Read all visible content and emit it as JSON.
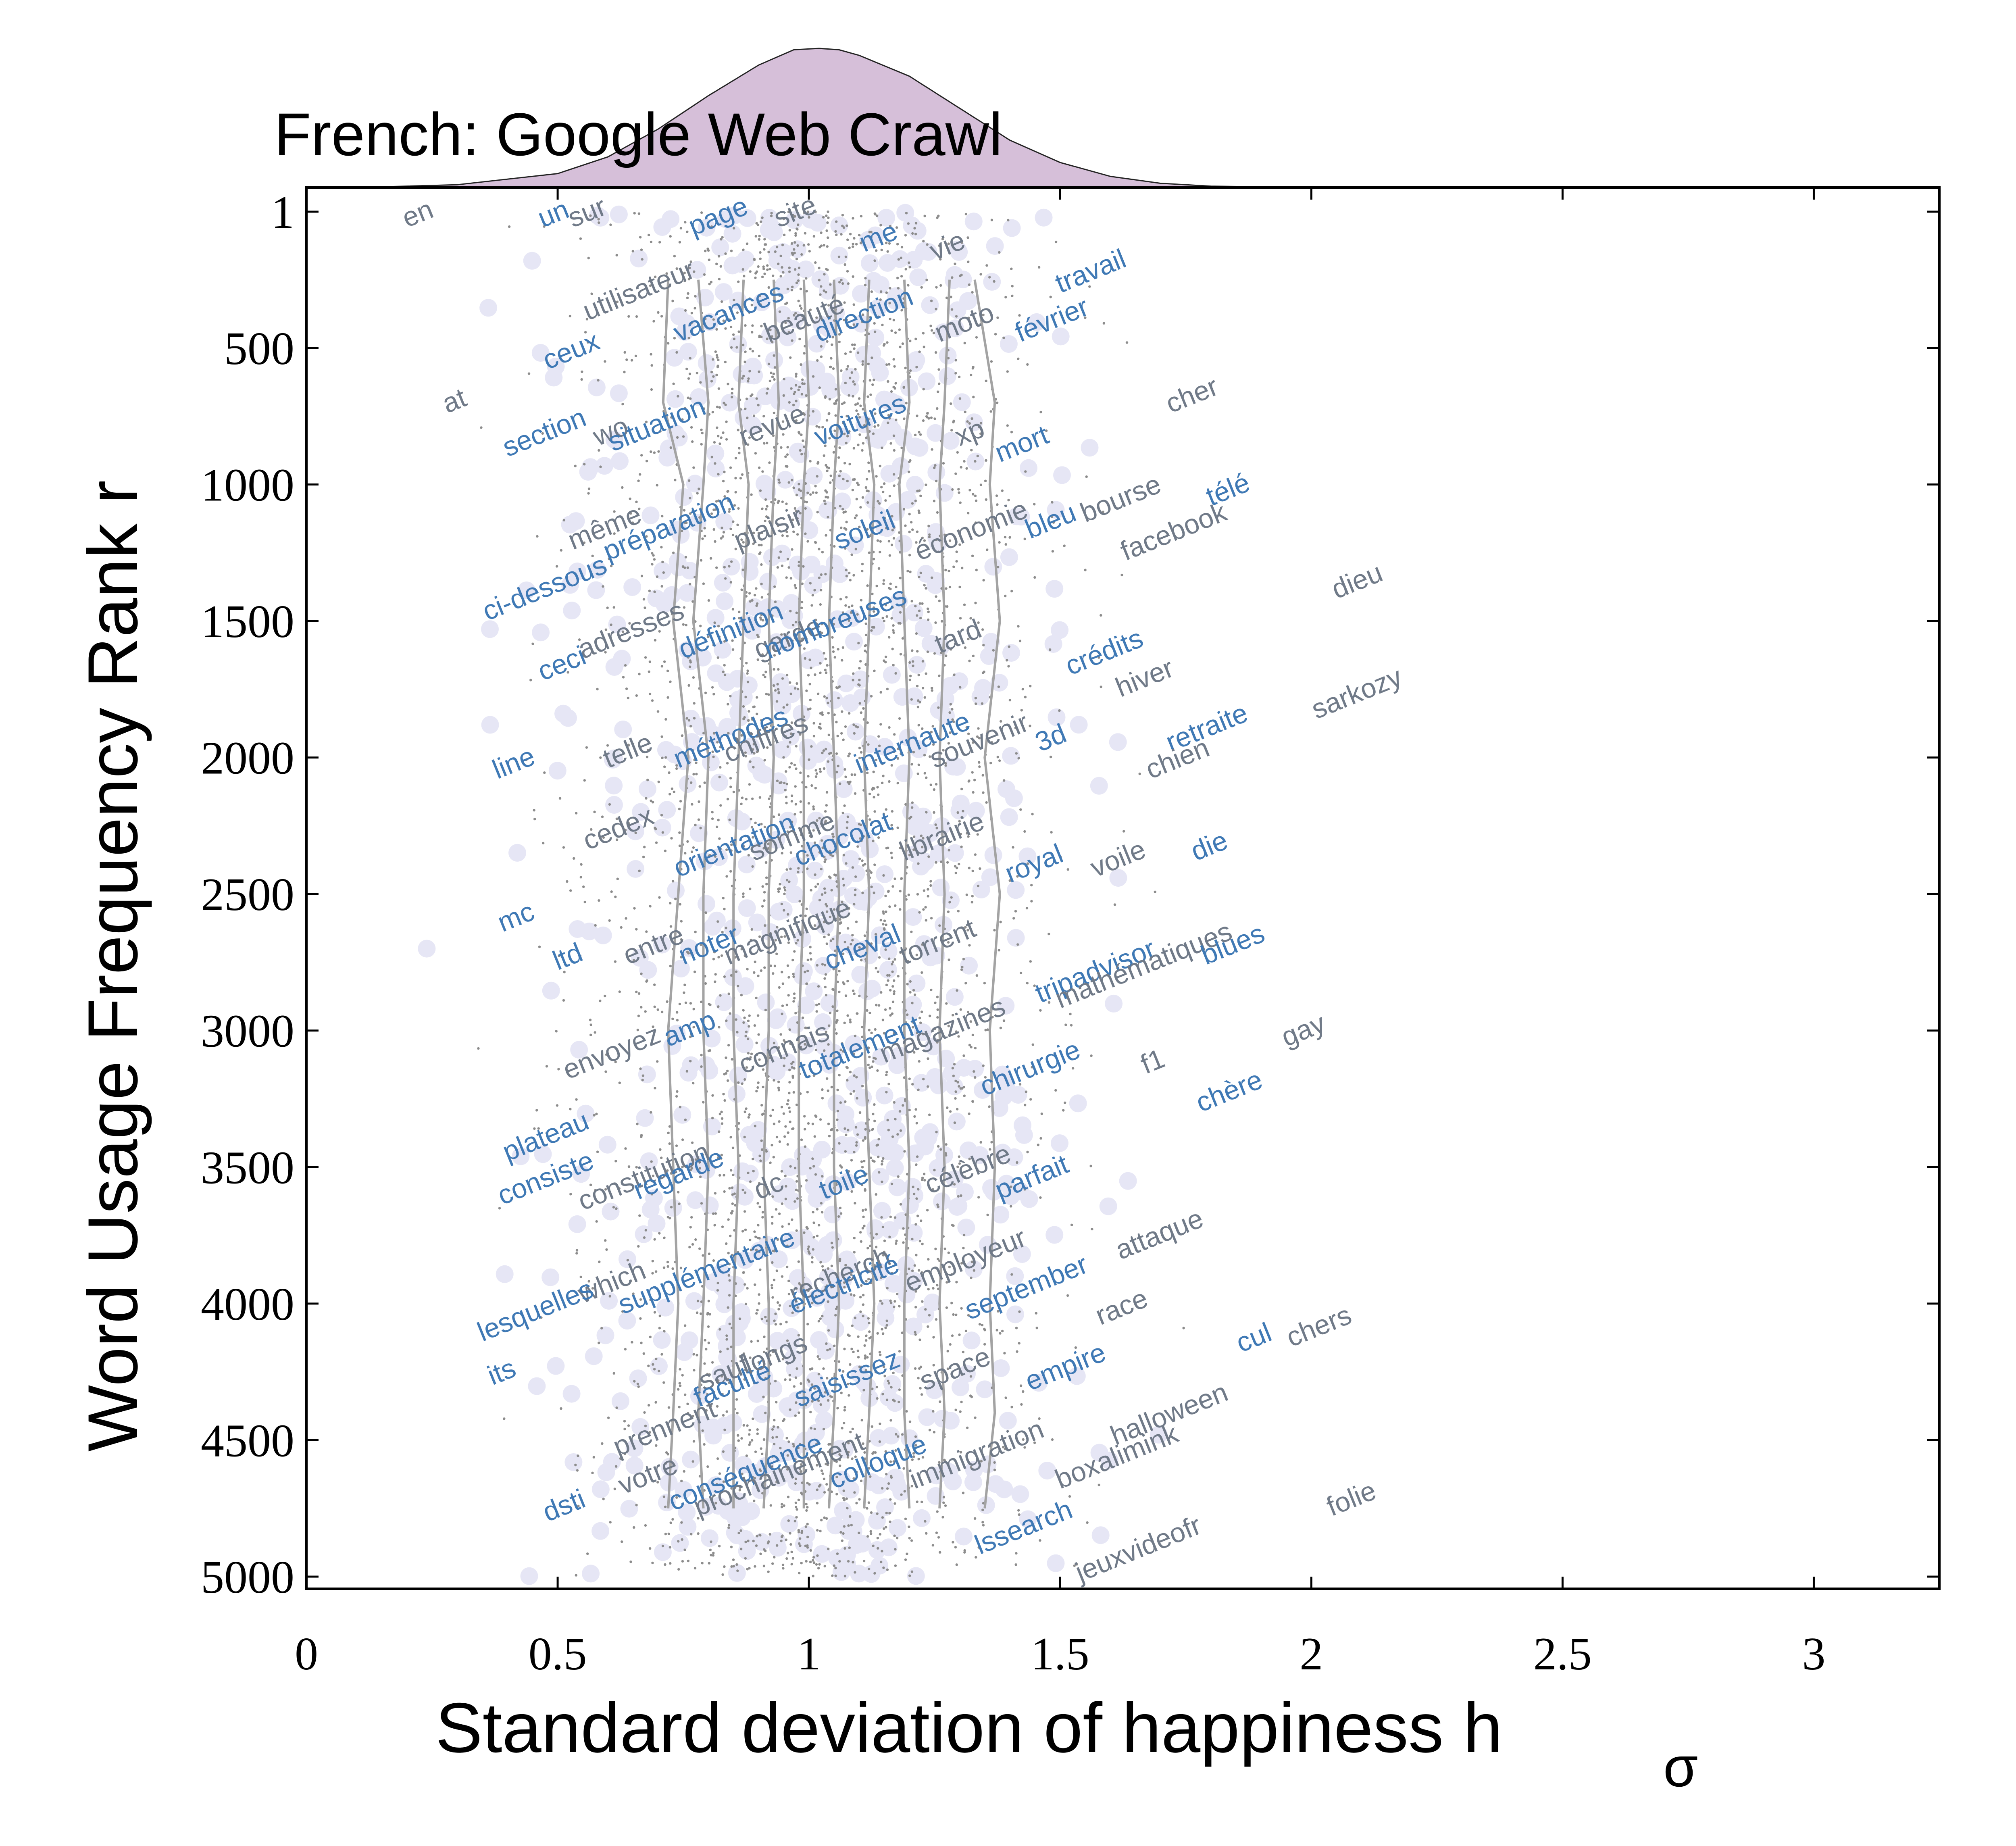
{
  "chart_data": {
    "type": "scatter",
    "title": "French: Google Web Crawl",
    "xlabel": "Standard deviation of happiness h",
    "xlabel_subscript": "σ",
    "ylabel": "Word Usage Frequency Rank r",
    "xlim": [
      0,
      3.25
    ],
    "ylim": [
      1,
      5100
    ],
    "y_inverted": true,
    "x_ticks": [
      0,
      0.5,
      1,
      1.5,
      2,
      2.5,
      3
    ],
    "x_tick_labels": [
      "0",
      "0.5",
      "1",
      "1.5",
      "2",
      "2.5",
      "3"
    ],
    "y_ticks": [
      1,
      500,
      1000,
      1500,
      2000,
      2500,
      3000,
      3500,
      4000,
      4500,
      5000
    ],
    "y_tick_labels": [
      "1",
      "500",
      "1000",
      "1500",
      "2000",
      "2500",
      "3000",
      "3500",
      "4000",
      "4500",
      "5000"
    ],
    "grid": false,
    "colors": {
      "word_blue": "#3f79b5",
      "word_gray": "#707a88",
      "halo": "#e6e6f5",
      "point": "#8c8c8c",
      "deciles": "#a3a3a3",
      "density_fill": "#d6bfd9",
      "density_stroke": "#222222"
    },
    "marginal_density": {
      "x": [
        0.1,
        0.3,
        0.5,
        0.6,
        0.7,
        0.8,
        0.9,
        0.97,
        1.02,
        1.06,
        1.1,
        1.2,
        1.3,
        1.4,
        1.5,
        1.6,
        1.7,
        1.8,
        2.0
      ],
      "y": [
        0.0,
        0.02,
        0.1,
        0.22,
        0.42,
        0.66,
        0.88,
        0.99,
        1.0,
        0.99,
        0.95,
        0.8,
        0.57,
        0.34,
        0.18,
        0.08,
        0.03,
        0.01,
        0.0
      ]
    },
    "decile_lines": [
      {
        "x": [
          0.72,
          0.71,
          0.75,
          0.73,
          0.76,
          0.74,
          0.72,
          0.73,
          0.74,
          0.73,
          0.72
        ],
        "r": [
          250,
          700,
          1000,
          1500,
          2000,
          2500,
          3000,
          3500,
          4000,
          4400,
          4750
        ]
      },
      {
        "x": [
          0.78,
          0.8,
          0.79,
          0.77,
          0.8,
          0.79,
          0.79,
          0.8,
          0.79,
          0.78,
          0.79
        ],
        "r": [
          250,
          700,
          1000,
          1500,
          2000,
          2500,
          3000,
          3500,
          4000,
          4400,
          4750
        ]
      },
      {
        "x": [
          0.87,
          0.86,
          0.88,
          0.87,
          0.86,
          0.85,
          0.85,
          0.86,
          0.85,
          0.85,
          0.85
        ],
        "r": [
          250,
          700,
          1000,
          1500,
          2000,
          2500,
          3000,
          3500,
          4000,
          4400,
          4750
        ]
      },
      {
        "x": [
          0.93,
          0.94,
          0.93,
          0.92,
          0.93,
          0.92,
          0.92,
          0.91,
          0.92,
          0.92,
          0.91
        ],
        "r": [
          250,
          700,
          1000,
          1500,
          2000,
          2500,
          3000,
          3500,
          4000,
          4400,
          4750
        ]
      },
      {
        "x": [
          0.99,
          1.0,
          0.99,
          0.98,
          0.99,
          0.99,
          0.98,
          0.98,
          0.99,
          0.99,
          0.99
        ],
        "r": [
          250,
          700,
          1000,
          1500,
          2000,
          2500,
          3000,
          3500,
          4000,
          4400,
          4750
        ]
      },
      {
        "x": [
          1.05,
          1.06,
          1.05,
          1.04,
          1.05,
          1.06,
          1.05,
          1.05,
          1.06,
          1.05,
          1.04
        ],
        "r": [
          250,
          700,
          1000,
          1500,
          2000,
          2500,
          3000,
          3500,
          4000,
          4400,
          4750
        ]
      },
      {
        "x": [
          1.12,
          1.11,
          1.13,
          1.12,
          1.11,
          1.12,
          1.11,
          1.12,
          1.13,
          1.12,
          1.11
        ],
        "r": [
          250,
          700,
          1000,
          1500,
          2000,
          2500,
          3000,
          3500,
          4000,
          4400,
          4750
        ]
      },
      {
        "x": [
          1.19,
          1.2,
          1.18,
          1.19,
          1.2,
          1.19,
          1.19,
          1.2,
          1.19,
          1.19,
          1.2
        ],
        "r": [
          250,
          700,
          1000,
          1500,
          2000,
          2500,
          3000,
          3500,
          4000,
          4400,
          4750
        ]
      },
      {
        "x": [
          1.28,
          1.27,
          1.26,
          1.27,
          1.26,
          1.27,
          1.26,
          1.27,
          1.26,
          1.27,
          1.26
        ],
        "r": [
          250,
          700,
          1000,
          1500,
          2000,
          2500,
          3000,
          3500,
          4000,
          4400,
          4750
        ]
      },
      {
        "x": [
          1.33,
          1.37,
          1.36,
          1.38,
          1.35,
          1.38,
          1.36,
          1.37,
          1.36,
          1.37,
          1.35
        ],
        "r": [
          250,
          700,
          1000,
          1500,
          2000,
          2500,
          3000,
          3500,
          4000,
          4400,
          4750
        ]
      }
    ],
    "words": [
      {
        "w": "en",
        "x": 0.2,
        "r": 60,
        "c": "g"
      },
      {
        "w": "un",
        "x": 0.47,
        "r": 60,
        "c": "b"
      },
      {
        "w": "sur",
        "x": 0.53,
        "r": 60,
        "c": "g"
      },
      {
        "w": "page",
        "x": 0.77,
        "r": 90,
        "c": "b"
      },
      {
        "w": "site",
        "x": 0.94,
        "r": 60,
        "c": "g"
      },
      {
        "w": "me",
        "x": 1.11,
        "r": 150,
        "c": "b"
      },
      {
        "w": "vie",
        "x": 1.25,
        "r": 180,
        "c": "g"
      },
      {
        "w": "travail",
        "x": 1.5,
        "r": 300,
        "c": "b"
      },
      {
        "w": "utilisateur",
        "x": 0.56,
        "r": 400,
        "c": "g"
      },
      {
        "w": "vacances",
        "x": 0.74,
        "r": 480,
        "c": "b"
      },
      {
        "w": "beauté",
        "x": 0.92,
        "r": 480,
        "c": "g"
      },
      {
        "w": "direction",
        "x": 1.02,
        "r": 480,
        "c": "b"
      },
      {
        "w": "moto",
        "x": 1.26,
        "r": 480,
        "c": "g"
      },
      {
        "w": "février",
        "x": 1.42,
        "r": 480,
        "c": "b"
      },
      {
        "w": "ceux",
        "x": 0.48,
        "r": 580,
        "c": "b"
      },
      {
        "w": "at",
        "x": 0.28,
        "r": 740,
        "c": "g"
      },
      {
        "w": "cher",
        "x": 1.72,
        "r": 740,
        "c": "g"
      },
      {
        "w": "section",
        "x": 0.4,
        "r": 900,
        "c": "b"
      },
      {
        "w": "wo",
        "x": 0.58,
        "r": 860,
        "c": "g"
      },
      {
        "w": "situation",
        "x": 0.61,
        "r": 880,
        "c": "b"
      },
      {
        "w": "revue",
        "x": 0.87,
        "r": 860,
        "c": "g"
      },
      {
        "w": "voitures",
        "x": 1.02,
        "r": 860,
        "c": "b"
      },
      {
        "w": "xp",
        "x": 1.3,
        "r": 860,
        "c": "g"
      },
      {
        "w": "mort",
        "x": 1.38,
        "r": 920,
        "c": "b"
      },
      {
        "w": "bourse",
        "x": 1.55,
        "r": 1140,
        "c": "g"
      },
      {
        "w": "télé",
        "x": 1.8,
        "r": 1080,
        "c": "b"
      },
      {
        "w": "bleu",
        "x": 1.44,
        "r": 1200,
        "c": "b"
      },
      {
        "w": "facebook",
        "x": 1.63,
        "r": 1280,
        "c": "g"
      },
      {
        "w": "même",
        "x": 0.53,
        "r": 1240,
        "c": "g"
      },
      {
        "w": "préparation",
        "x": 0.6,
        "r": 1280,
        "c": "b"
      },
      {
        "w": "plaisir",
        "x": 0.86,
        "r": 1240,
        "c": "g"
      },
      {
        "w": "soleil",
        "x": 1.06,
        "r": 1240,
        "c": "b"
      },
      {
        "w": "économie",
        "x": 1.22,
        "r": 1280,
        "c": "g"
      },
      {
        "w": "ci-dessous",
        "x": 0.36,
        "r": 1500,
        "c": "b"
      },
      {
        "w": "dieu",
        "x": 2.05,
        "r": 1420,
        "c": "g"
      },
      {
        "w": "adresses",
        "x": 0.55,
        "r": 1640,
        "c": "g"
      },
      {
        "w": "définition",
        "x": 0.75,
        "r": 1640,
        "c": "b"
      },
      {
        "w": "garde",
        "x": 0.9,
        "r": 1640,
        "c": "g"
      },
      {
        "w": "nombreuses",
        "x": 0.92,
        "r": 1640,
        "c": "b"
      },
      {
        "w": "tard",
        "x": 1.26,
        "r": 1620,
        "c": "g"
      },
      {
        "w": "ceci",
        "x": 0.47,
        "r": 1720,
        "c": "b"
      },
      {
        "w": "crédits",
        "x": 1.52,
        "r": 1700,
        "c": "b"
      },
      {
        "w": "hiver",
        "x": 1.62,
        "r": 1780,
        "c": "g"
      },
      {
        "w": "sarkozy",
        "x": 2.01,
        "r": 1860,
        "c": "g"
      },
      {
        "w": "méthodes",
        "x": 0.74,
        "r": 2040,
        "c": "b"
      },
      {
        "w": "chiffres",
        "x": 0.84,
        "r": 2020,
        "c": "g"
      },
      {
        "w": "telle",
        "x": 0.6,
        "r": 2040,
        "c": "g"
      },
      {
        "w": "internaute",
        "x": 1.1,
        "r": 2060,
        "c": "b"
      },
      {
        "w": "souvenir",
        "x": 1.25,
        "r": 2040,
        "c": "g"
      },
      {
        "w": "3d",
        "x": 1.46,
        "r": 1980,
        "c": "b"
      },
      {
        "w": "retraite",
        "x": 1.72,
        "r": 1980,
        "c": "b"
      },
      {
        "w": "chien",
        "x": 1.68,
        "r": 2080,
        "c": "g"
      },
      {
        "w": "line",
        "x": 0.38,
        "r": 2080,
        "c": "b"
      },
      {
        "w": "cedex",
        "x": 0.56,
        "r": 2340,
        "c": "g"
      },
      {
        "w": "orientation",
        "x": 0.74,
        "r": 2440,
        "c": "b"
      },
      {
        "w": "somme",
        "x": 0.89,
        "r": 2380,
        "c": "g"
      },
      {
        "w": "chocolat",
        "x": 0.98,
        "r": 2400,
        "c": "b"
      },
      {
        "w": "librairie",
        "x": 1.19,
        "r": 2380,
        "c": "g"
      },
      {
        "w": "royal",
        "x": 1.4,
        "r": 2460,
        "c": "b"
      },
      {
        "w": "voile",
        "x": 1.57,
        "r": 2440,
        "c": "g"
      },
      {
        "w": "die",
        "x": 1.77,
        "r": 2380,
        "c": "b"
      },
      {
        "w": "mc",
        "x": 0.39,
        "r": 2640,
        "c": "b"
      },
      {
        "w": "entre",
        "x": 0.64,
        "r": 2760,
        "c": "g"
      },
      {
        "w": "noter",
        "x": 0.75,
        "r": 2760,
        "c": "b"
      },
      {
        "w": "magnifique",
        "x": 0.84,
        "r": 2760,
        "c": "g"
      },
      {
        "w": "cheval",
        "x": 1.04,
        "r": 2780,
        "c": "b"
      },
      {
        "w": "torrent",
        "x": 1.19,
        "r": 2760,
        "c": "g"
      },
      {
        "w": "tripadvisor",
        "x": 1.46,
        "r": 2900,
        "c": "b"
      },
      {
        "w": "mathématiques",
        "x": 1.5,
        "r": 2920,
        "c": "g"
      },
      {
        "w": "blues",
        "x": 1.79,
        "r": 2760,
        "c": "b"
      },
      {
        "w": "ltd",
        "x": 0.5,
        "r": 2780,
        "c": "b"
      },
      {
        "w": "envoyez",
        "x": 0.52,
        "r": 3180,
        "c": "g"
      },
      {
        "w": "amp",
        "x": 0.72,
        "r": 3060,
        "c": "b"
      },
      {
        "w": "connais",
        "x": 0.87,
        "r": 3160,
        "c": "g"
      },
      {
        "w": "totalement",
        "x": 0.99,
        "r": 3180,
        "c": "b"
      },
      {
        "w": "magazines",
        "x": 1.15,
        "r": 3120,
        "c": "g"
      },
      {
        "w": "f1",
        "x": 1.67,
        "r": 3160,
        "c": "g"
      },
      {
        "w": "chirurgie",
        "x": 1.35,
        "r": 3240,
        "c": "b"
      },
      {
        "w": "chère",
        "x": 1.78,
        "r": 3300,
        "c": "b"
      },
      {
        "w": "gay",
        "x": 1.95,
        "r": 3060,
        "c": "g"
      },
      {
        "w": "plateau",
        "x": 0.4,
        "r": 3480,
        "c": "b"
      },
      {
        "w": "constitution",
        "x": 0.55,
        "r": 3660,
        "c": "g"
      },
      {
        "w": "regarde",
        "x": 0.66,
        "r": 3620,
        "c": "b"
      },
      {
        "w": "dc",
        "x": 0.9,
        "r": 3620,
        "c": "g"
      },
      {
        "w": "toile",
        "x": 1.03,
        "r": 3620,
        "c": "b"
      },
      {
        "w": "célèbre",
        "x": 1.24,
        "r": 3600,
        "c": "g"
      },
      {
        "w": "parfait",
        "x": 1.38,
        "r": 3620,
        "c": "b"
      },
      {
        "w": "consiste",
        "x": 0.39,
        "r": 3640,
        "c": "b"
      },
      {
        "w": "supplémentaire",
        "x": 0.63,
        "r": 4040,
        "c": "b"
      },
      {
        "w": "recherch",
        "x": 0.97,
        "r": 4000,
        "c": "g"
      },
      {
        "w": "électricité",
        "x": 0.97,
        "r": 4040,
        "c": "b"
      },
      {
        "w": "employeur",
        "x": 1.2,
        "r": 3960,
        "c": "g"
      },
      {
        "w": "september",
        "x": 1.32,
        "r": 4060,
        "c": "b"
      },
      {
        "w": "attaque",
        "x": 1.62,
        "r": 3840,
        "c": "g"
      },
      {
        "w": "which",
        "x": 0.55,
        "r": 4000,
        "c": "g"
      },
      {
        "w": "lesquelles",
        "x": 0.35,
        "r": 4140,
        "c": "b"
      },
      {
        "w": "race",
        "x": 1.58,
        "r": 4080,
        "c": "g"
      },
      {
        "w": "its",
        "x": 0.37,
        "r": 4300,
        "c": "b"
      },
      {
        "w": "prennent",
        "x": 0.62,
        "r": 4560,
        "c": "g"
      },
      {
        "w": "sauf",
        "x": 0.79,
        "r": 4320,
        "c": "g"
      },
      {
        "w": "faculté",
        "x": 0.78,
        "r": 4380,
        "c": "b"
      },
      {
        "w": "longs",
        "x": 0.88,
        "r": 4260,
        "c": "g"
      },
      {
        "w": "saisissez",
        "x": 0.98,
        "r": 4380,
        "c": "b"
      },
      {
        "w": "space",
        "x": 1.23,
        "r": 4320,
        "c": "g"
      },
      {
        "w": "empire",
        "x": 1.44,
        "r": 4320,
        "c": "b"
      },
      {
        "w": "halloween",
        "x": 1.61,
        "r": 4520,
        "c": "g"
      },
      {
        "w": "cul",
        "x": 1.86,
        "r": 4180,
        "c": "b"
      },
      {
        "w": "chers",
        "x": 1.96,
        "r": 4160,
        "c": "g"
      },
      {
        "w": "votre",
        "x": 0.63,
        "r": 4700,
        "c": "g"
      },
      {
        "w": "conséquence",
        "x": 0.73,
        "r": 4760,
        "c": "b"
      },
      {
        "w": "prochainement",
        "x": 0.78,
        "r": 4780,
        "c": "g"
      },
      {
        "w": "colloque",
        "x": 1.05,
        "r": 4680,
        "c": "b"
      },
      {
        "w": "immigration",
        "x": 1.21,
        "r": 4680,
        "c": "g"
      },
      {
        "w": "boxalimink",
        "x": 1.5,
        "r": 4680,
        "c": "g"
      },
      {
        "w": "lssearch",
        "x": 1.34,
        "r": 4920,
        "c": "b"
      },
      {
        "w": "dsti",
        "x": 0.48,
        "r": 4800,
        "c": "b"
      },
      {
        "w": "jeuxvideofr",
        "x": 1.54,
        "r": 5020,
        "c": "g"
      },
      {
        "w": "folie",
        "x": 2.04,
        "r": 4780,
        "c": "g"
      }
    ]
  }
}
